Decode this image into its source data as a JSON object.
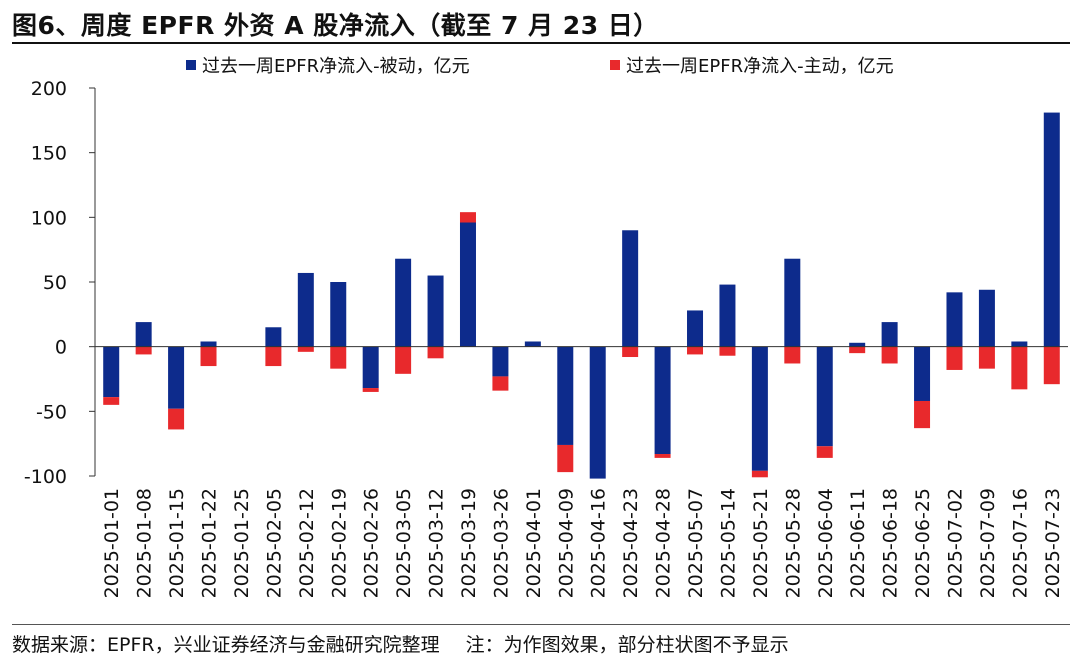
{
  "title": "图6、周度 EPFR 外资 A 股净流入（截至 7 月 23 日）",
  "footer": {
    "source": "数据来源：EPFR，兴业证券经济与金融研究院整理",
    "note": "注：为作图效果，部分柱状图不予显示"
  },
  "colors": {
    "passive": "#0d2b8c",
    "active": "#e8292c"
  },
  "chart_data": {
    "type": "bar",
    "stacked": true,
    "categories": [
      "2025-01-01",
      "2025-01-08",
      "2025-01-15",
      "2025-01-22",
      "2025-01-25",
      "2025-02-05",
      "2025-02-12",
      "2025-02-19",
      "2025-02-26",
      "2025-03-05",
      "2025-03-12",
      "2025-03-19",
      "2025-03-26",
      "2025-04-01",
      "2025-04-09",
      "2025-04-16",
      "2025-04-23",
      "2025-04-28",
      "2025-05-07",
      "2025-05-14",
      "2025-05-21",
      "2025-05-28",
      "2025-06-04",
      "2025-06-11",
      "2025-06-18",
      "2025-06-25",
      "2025-07-02",
      "2025-07-09",
      "2025-07-16",
      "2025-07-23"
    ],
    "series": [
      {
        "name": "过去一周EPFR净流入-被动，亿元",
        "values": [
          -39,
          19,
          -48,
          4,
          0,
          15,
          57,
          50,
          -32,
          68,
          55,
          96,
          -23,
          4,
          -76,
          -102,
          90,
          -83,
          28,
          48,
          -96,
          68,
          -77,
          3,
          19,
          -42,
          42,
          44,
          4,
          181
        ]
      },
      {
        "name": "过去一周EPFR净流入-主动，亿元",
        "values": [
          -6,
          -6,
          -16,
          -15,
          0,
          -15,
          -4,
          -17,
          -3,
          -21,
          -9,
          8,
          -11,
          0,
          -21,
          0,
          -8,
          -3,
          -6,
          -7,
          -5,
          -13,
          -9,
          -5,
          -13,
          -21,
          -18,
          -17,
          -33,
          -29
        ]
      }
    ],
    "ylim": [
      -100,
      200
    ],
    "yticks": [
      200,
      150,
      100,
      50,
      0,
      -50,
      -100
    ],
    "ytick_labels": [
      "200",
      "150",
      "100",
      "50",
      "0",
      "-50",
      "-100"
    ],
    "legend_position": "top",
    "grid": false,
    "xlabel": "",
    "ylabel": ""
  }
}
